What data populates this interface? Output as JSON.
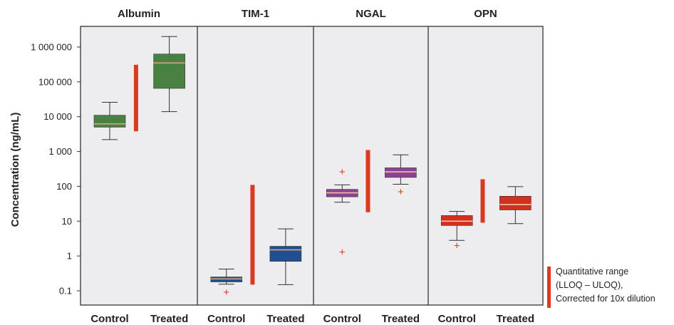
{
  "chart_data": {
    "type": "box",
    "ylabel": "Concentration (ng/mL)",
    "yscale": "log",
    "ylim": [
      0.04,
      5000000
    ],
    "yticks": [
      0.1,
      1,
      10,
      100,
      1000,
      10000,
      100000,
      1000000
    ],
    "ytick_labels": [
      "0.1",
      "1",
      "10",
      "100",
      "1 000",
      "10 000",
      "100 000",
      "1 000 000"
    ],
    "background": "#ededf0",
    "range_color": "#d93b22",
    "outlier_color": "#d93b22",
    "panels": [
      {
        "title": "Albumin",
        "color": "#4a8041",
        "median_color": "#d9a37e",
        "quant_range": [
          3800,
          310000
        ],
        "boxes": [
          {
            "category": "Control",
            "whisker_low": 2200,
            "q1": 5000,
            "median": 6200,
            "q3": 11000,
            "whisker_high": 26000,
            "outliers": []
          },
          {
            "category": "Treated",
            "whisker_low": 14000,
            "q1": 65000,
            "median": 350000,
            "q3": 630000,
            "whisker_high": 2000000,
            "outliers": []
          }
        ]
      },
      {
        "title": "TIM-1",
        "color": "#1f4e91",
        "median_color": "#d9a37e",
        "quant_range": [
          0.15,
          110
        ],
        "boxes": [
          {
            "category": "Control",
            "whisker_low": 0.155,
            "q1": 0.18,
            "median": 0.22,
            "q3": 0.25,
            "whisker_high": 0.42,
            "outliers": [
              0.09
            ]
          },
          {
            "category": "Treated",
            "whisker_low": 0.15,
            "q1": 0.7,
            "median": 1.5,
            "q3": 1.9,
            "whisker_high": 6,
            "outliers": []
          }
        ]
      },
      {
        "title": "NGAL",
        "color": "#8e4295",
        "median_color": "#f0c0a0",
        "quant_range": [
          18,
          1100
        ],
        "boxes": [
          {
            "category": "Control",
            "whisker_low": 35,
            "q1": 50,
            "median": 65,
            "q3": 82,
            "whisker_high": 110,
            "outliers": [
              260,
              1.3
            ]
          },
          {
            "category": "Treated",
            "whisker_low": 115,
            "q1": 180,
            "median": 260,
            "q3": 340,
            "whisker_high": 800,
            "outliers": [
              70
            ]
          }
        ]
      },
      {
        "title": "OPN",
        "color": "#d42e1e",
        "median_color": "#f3c7a8",
        "quant_range": [
          9,
          160
        ],
        "boxes": [
          {
            "category": "Control",
            "whisker_low": 2.8,
            "q1": 7.5,
            "median": 10,
            "q3": 14.5,
            "whisker_high": 19,
            "outliers": [
              2
            ]
          },
          {
            "category": "Treated",
            "whisker_low": 8.5,
            "q1": 21,
            "median": 30,
            "q3": 52,
            "whisker_high": 98,
            "outliers": []
          }
        ]
      }
    ],
    "legend": {
      "lines": [
        "Quantitative range",
        "(LLOQ – ULOQ),",
        "Corrected for 10x dilution"
      ],
      "position": "bottom-right"
    }
  }
}
